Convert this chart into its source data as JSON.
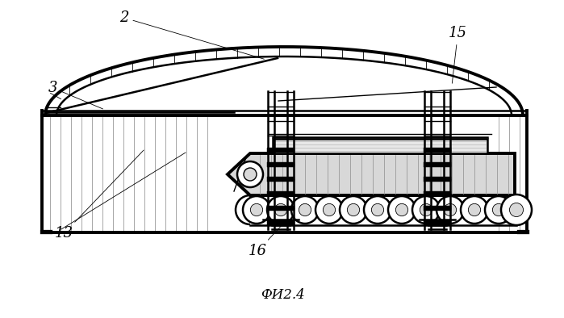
{
  "bg_color": "#ffffff",
  "line_color": "#000000",
  "gray_fill": "#c8c8c8",
  "light_gray": "#d8d8d8",
  "hatch_color": "#999999",
  "fig_caption": "ФИ2.4"
}
